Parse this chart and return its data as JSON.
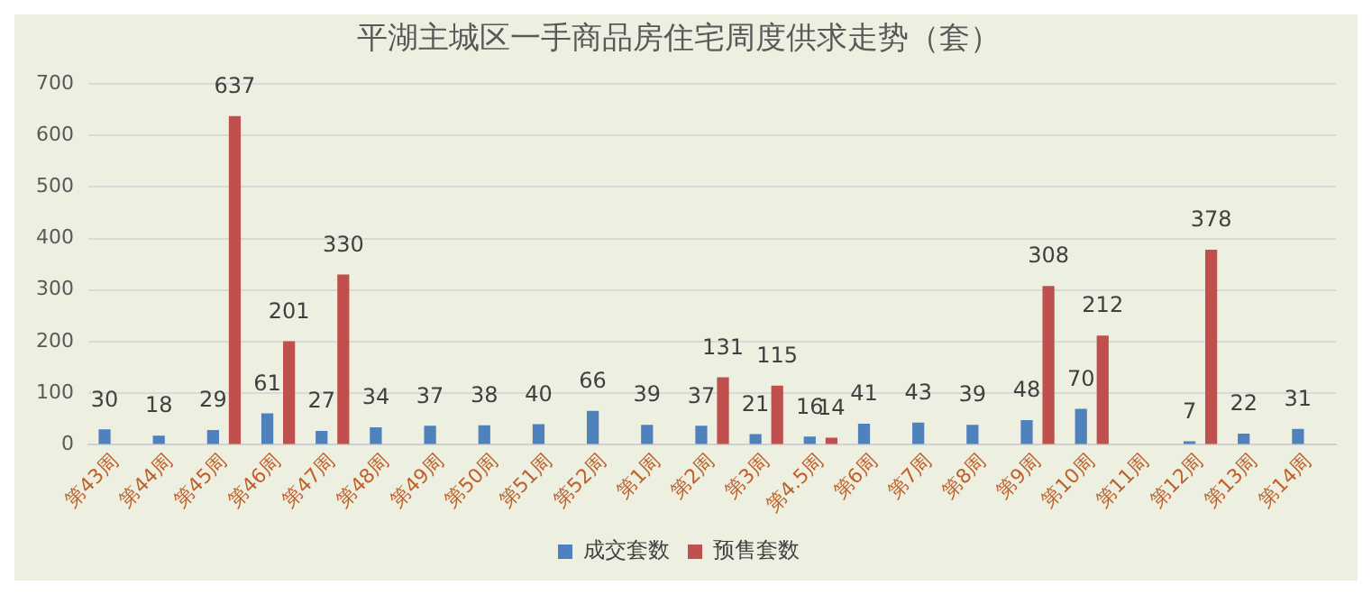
{
  "chart_data": {
    "type": "bar",
    "title": "平湖主城区一手商品房住宅周度供求走势（套）",
    "categories": [
      "第43周",
      "第44周",
      "第45周",
      "第46周",
      "第47周",
      "第48周",
      "第49周",
      "第50周",
      "第51周",
      "第52周",
      "第1周",
      "第2周",
      "第3周",
      "第4.5周",
      "第6周",
      "第7周",
      "第8周",
      "第9周",
      "第10周",
      "第11周",
      "第12周",
      "第13周",
      "第14周"
    ],
    "series": [
      {
        "name": "成交套数",
        "color": "#4f81bd",
        "values": [
          30,
          18,
          29,
          61,
          27,
          34,
          37,
          38,
          40,
          66,
          39,
          37,
          21,
          16,
          41,
          43,
          39,
          48,
          70,
          null,
          7,
          22,
          31
        ]
      },
      {
        "name": "预售套数",
        "color": "#c0504d",
        "values": [
          null,
          null,
          637,
          201,
          330,
          null,
          null,
          null,
          null,
          null,
          null,
          131,
          115,
          14,
          null,
          null,
          null,
          308,
          212,
          null,
          378,
          null,
          null
        ]
      }
    ],
    "ylim": [
      0,
      700
    ],
    "yticks": [
      0,
      100,
      200,
      300,
      400,
      500,
      600,
      700
    ],
    "grid": "y",
    "legend": "bottom",
    "data_labels": true
  }
}
